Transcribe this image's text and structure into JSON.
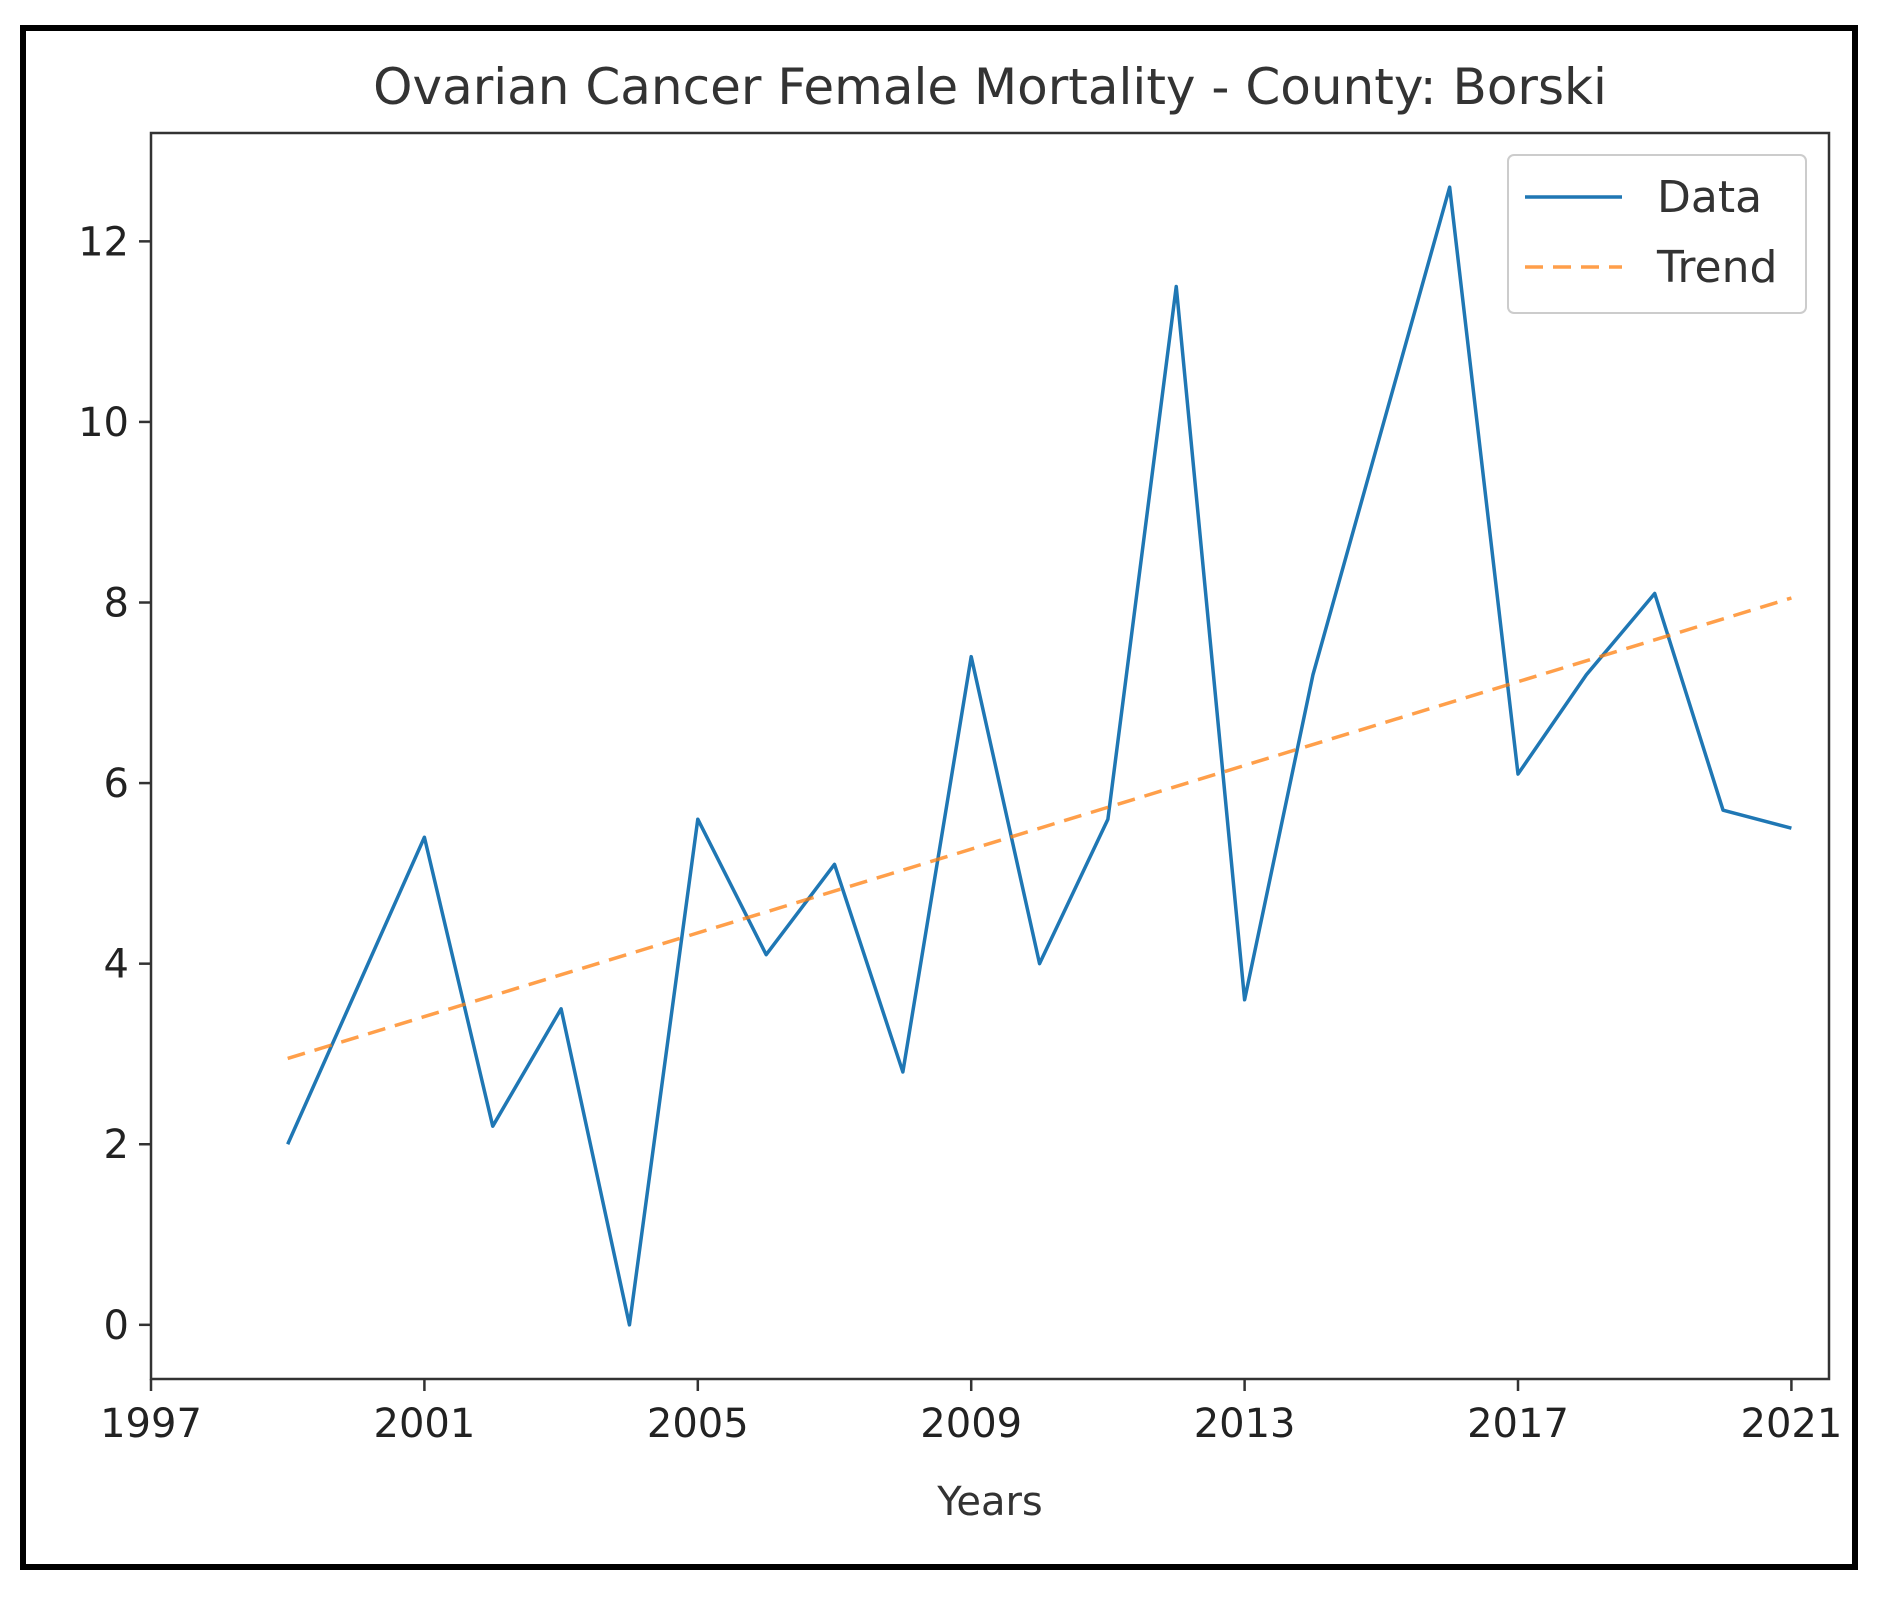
{
  "chart_data": {
    "type": "line",
    "title": "Ovarian Cancer Female Mortality - County: Borski",
    "xlabel": "Years",
    "ylabel": "",
    "xlim": [
      1997,
      2021.55
    ],
    "ylim": [
      -0.6,
      13.2
    ],
    "xticks": [
      1997,
      2001,
      2005,
      2009,
      2013,
      2017,
      2021
    ],
    "yticks": [
      0,
      2,
      4,
      6,
      8,
      10,
      12
    ],
    "legend_position": "top-right",
    "series": [
      {
        "name": "Data",
        "color": "#1f77b4",
        "style": "solid",
        "x": [
          1999,
          2000,
          2001,
          2002,
          2003,
          2004,
          2005,
          2006,
          2007,
          2008,
          2009,
          2010,
          2011,
          2012,
          2013,
          2014,
          2015,
          2016,
          2017,
          2018,
          2019,
          2020,
          2021
        ],
        "y": [
          2.0,
          3.7,
          5.4,
          2.2,
          3.5,
          0.0,
          5.6,
          4.1,
          5.1,
          2.8,
          7.4,
          4.0,
          5.6,
          11.5,
          3.6,
          7.2,
          9.9,
          12.6,
          6.1,
          7.2,
          8.1,
          5.7,
          5.5
        ]
      },
      {
        "name": "Trend",
        "color": "#ff7f0e",
        "style": "dashed",
        "x": [
          1999,
          2021
        ],
        "y": [
          2.95,
          8.05
        ]
      }
    ]
  }
}
